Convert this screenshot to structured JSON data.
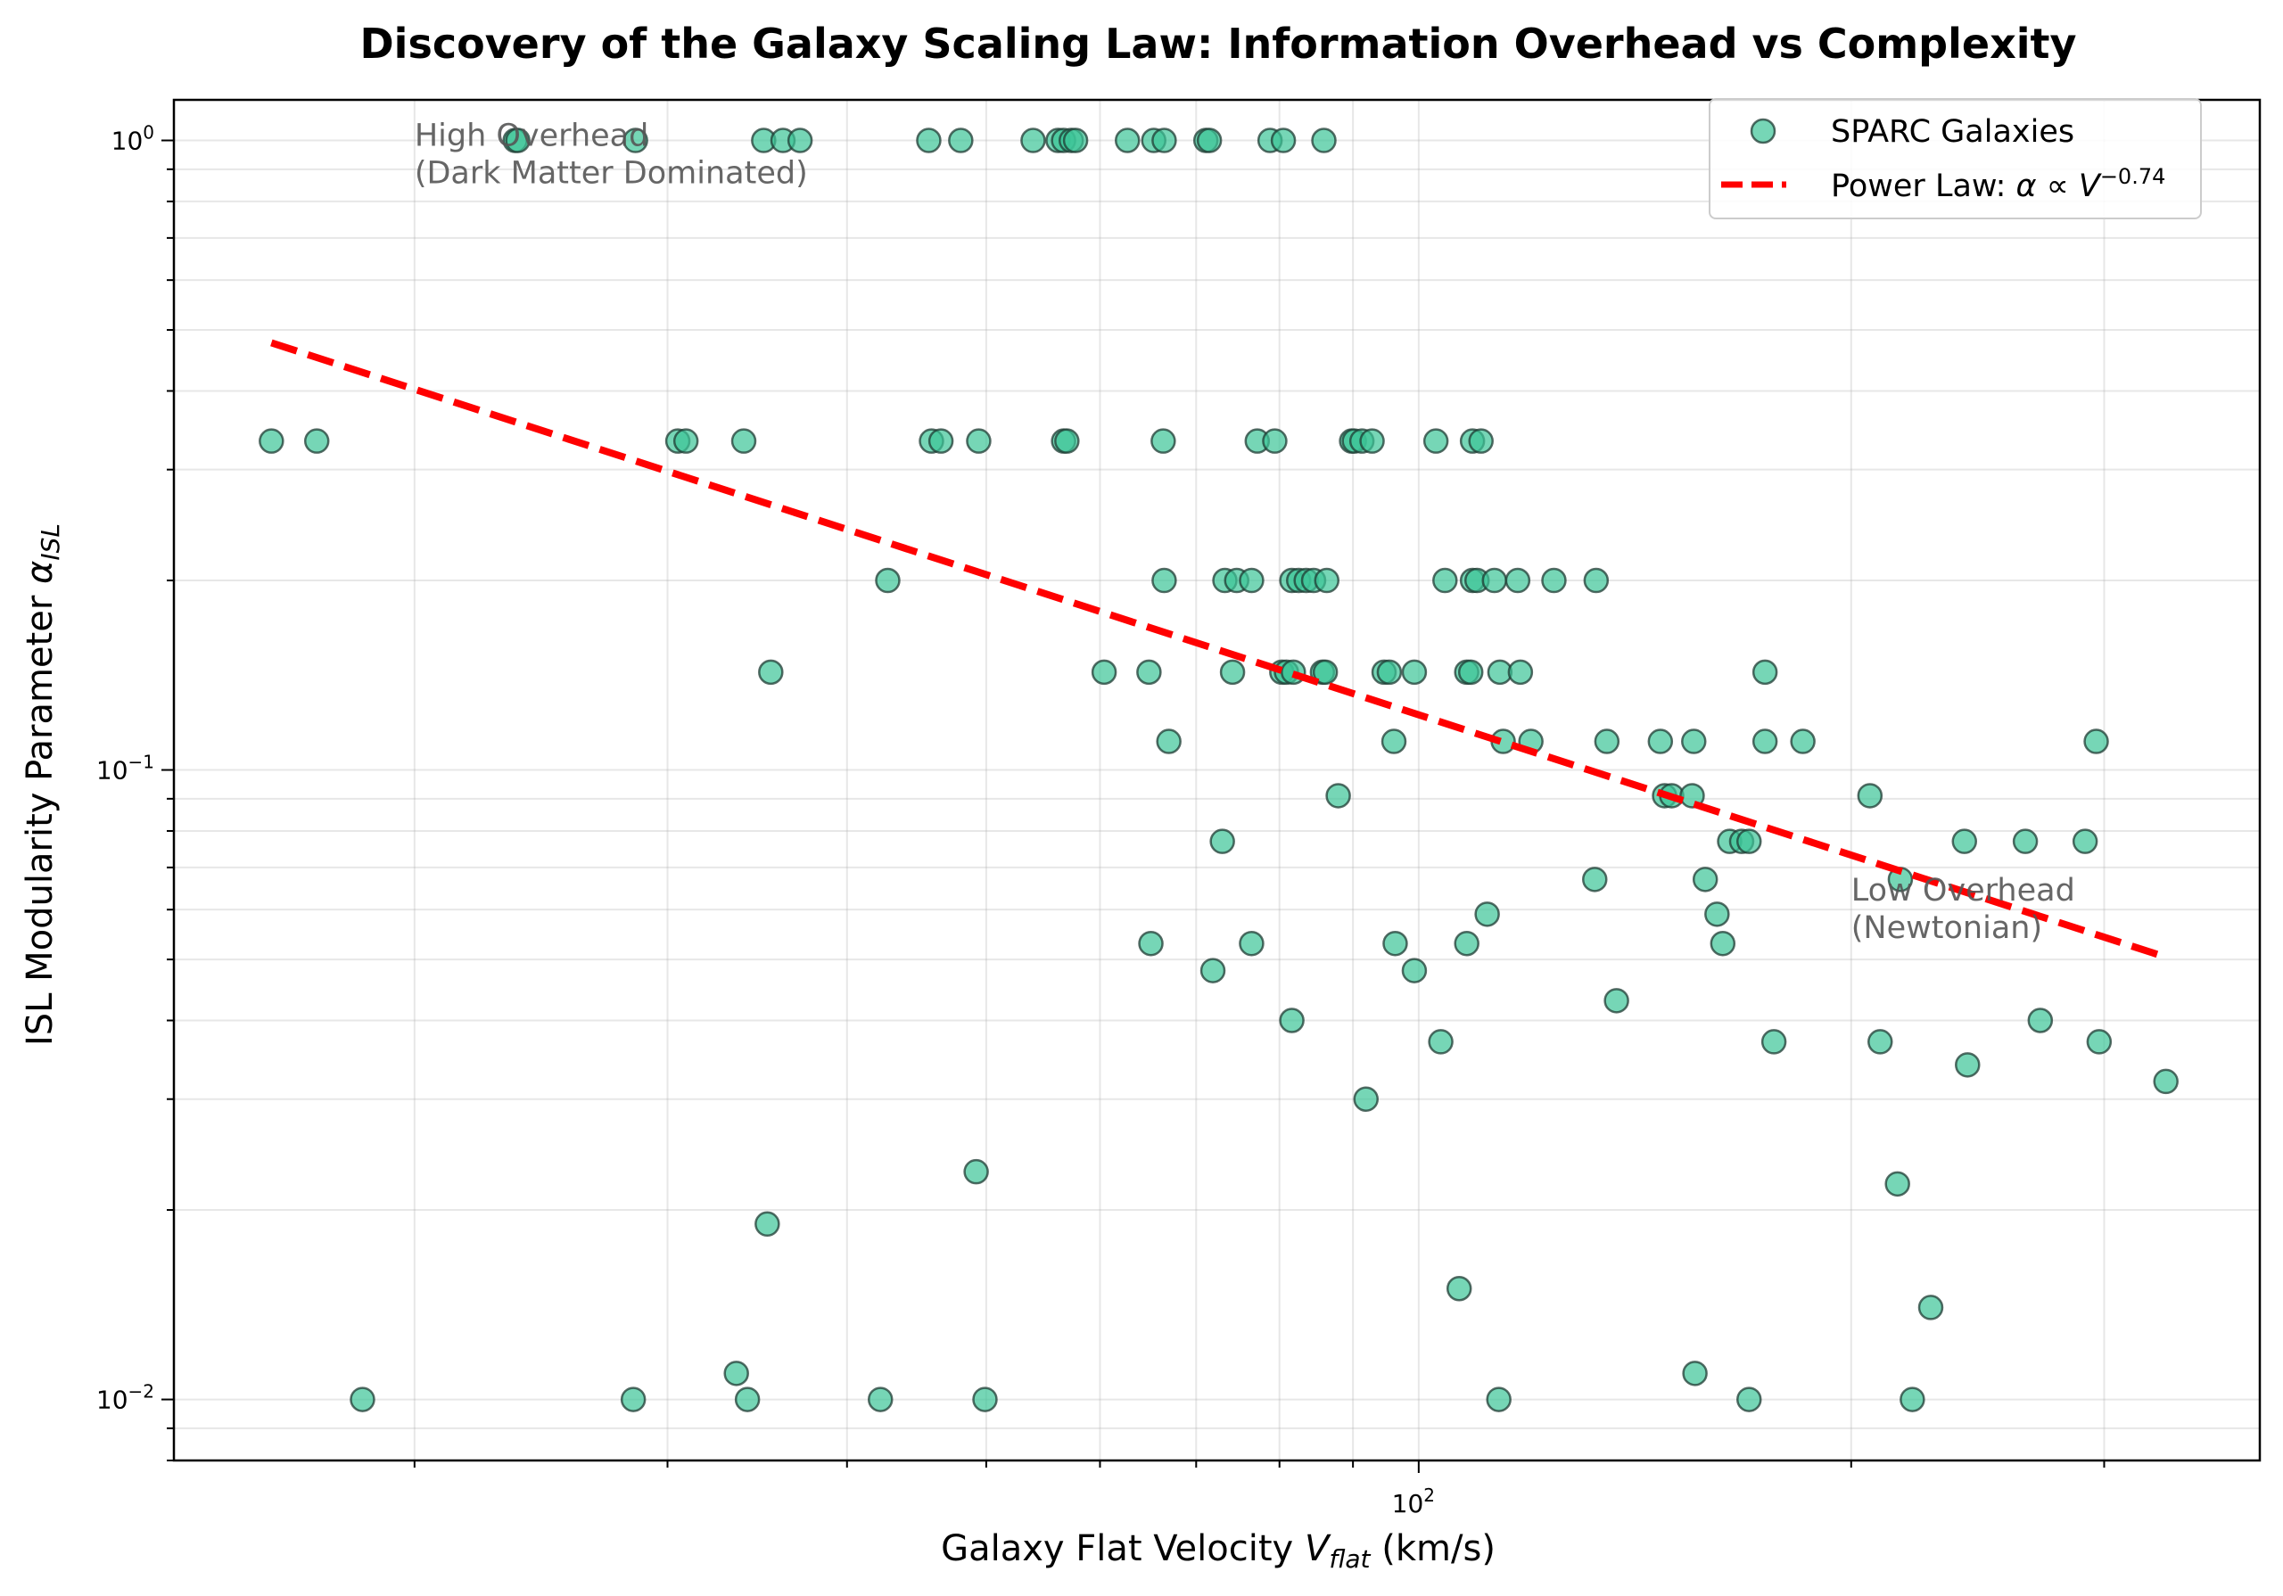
{
  "chart_data": {
    "type": "scatter",
    "title": "Discovery of the Galaxy Scaling Law: Information Overhead vs Complexity",
    "xlabel": "Galaxy Flat Velocity V_flat (km/s)",
    "xlabel_parts": {
      "pre": "Galaxy Flat Velocity ",
      "var": "V",
      "sub": "flat",
      "post": " (km/s)"
    },
    "ylabel": "ISL Modularity Parameter α_ISL",
    "ylabel_parts": {
      "pre": "ISL Modularity Parameter ",
      "var": "α",
      "sub": "ISL"
    },
    "xscale": "log",
    "yscale": "log",
    "xlim": [
      13.6,
      385
    ],
    "ylim": [
      0.008,
      1.16
    ],
    "grid": true,
    "x_ticks": [
      {
        "value": 100,
        "base": "10",
        "exp": "2"
      }
    ],
    "y_ticks": [
      {
        "value": 1,
        "base": "10",
        "exp": "0"
      },
      {
        "value": 0.1,
        "base": "10",
        "exp": "−1"
      },
      {
        "value": 0.01,
        "base": "10",
        "exp": "−2"
      }
    ],
    "legend": {
      "placement": "top-right",
      "entries": [
        {
          "label": "SPARC Galaxies",
          "kind": "marker"
        },
        {
          "label_pre": "Power Law: ",
          "label_math": "α ∝ V",
          "label_exp": "−0.74",
          "kind": "dashed-line"
        }
      ]
    },
    "annotations": [
      {
        "lines": [
          "High Overhead",
          "(Dark Matter Dominated)"
        ],
        "x": 20,
        "y": 0.98
      },
      {
        "lines": [
          "Low Overhead",
          "(Newtonian)"
        ],
        "x": 200,
        "y": 0.062
      }
    ],
    "colors": {
      "points": "#3cc497",
      "point_edge": "#1f3b33",
      "fit": "#ff0000"
    },
    "series": [
      {
        "name": "SPARC Galaxies",
        "type": "scatter",
        "points": [
          [
            23.5,
            1.0
          ],
          [
            23.6,
            1.0
          ],
          [
            28.5,
            1.0
          ],
          [
            35.0,
            1.0
          ],
          [
            36.1,
            1.0
          ],
          [
            37.1,
            1.0
          ],
          [
            45.6,
            1.0
          ],
          [
            48.0,
            1.0
          ],
          [
            53.9,
            1.0
          ],
          [
            56.1,
            1.0
          ],
          [
            56.6,
            1.0
          ],
          [
            57.3,
            1.0
          ],
          [
            57.7,
            1.0
          ],
          [
            62.7,
            1.0
          ],
          [
            65.4,
            1.0
          ],
          [
            66.5,
            1.0
          ],
          [
            71.1,
            1.0
          ],
          [
            71.5,
            1.0
          ],
          [
            78.8,
            1.0
          ],
          [
            80.5,
            1.0
          ],
          [
            85.9,
            1.0
          ],
          [
            15.9,
            0.333
          ],
          [
            17.1,
            0.333
          ],
          [
            30.5,
            0.333
          ],
          [
            30.9,
            0.333
          ],
          [
            33.9,
            0.333
          ],
          [
            45.8,
            0.333
          ],
          [
            46.5,
            0.333
          ],
          [
            49.4,
            0.333
          ],
          [
            56.6,
            0.333
          ],
          [
            56.9,
            0.333
          ],
          [
            66.4,
            0.333
          ],
          [
            77.2,
            0.333
          ],
          [
            79.4,
            0.333
          ],
          [
            89.8,
            0.333
          ],
          [
            90.2,
            0.333
          ],
          [
            91.3,
            0.333
          ],
          [
            92.8,
            0.333
          ],
          [
            102.8,
            0.333
          ],
          [
            109.0,
            0.333
          ],
          [
            110.5,
            0.333
          ],
          [
            42.7,
            0.2
          ],
          [
            66.5,
            0.2
          ],
          [
            73.3,
            0.2
          ],
          [
            74.7,
            0.2
          ],
          [
            76.5,
            0.2
          ],
          [
            81.6,
            0.2
          ],
          [
            82.5,
            0.2
          ],
          [
            83.5,
            0.2
          ],
          [
            84.5,
            0.2
          ],
          [
            86.3,
            0.2
          ],
          [
            104.3,
            0.2
          ],
          [
            109.0,
            0.2
          ],
          [
            109.8,
            0.2
          ],
          [
            112.9,
            0.2
          ],
          [
            117.2,
            0.2
          ],
          [
            124.2,
            0.2
          ],
          [
            132.9,
            0.2
          ],
          [
            35.4,
            0.143
          ],
          [
            60.4,
            0.143
          ],
          [
            64.9,
            0.143
          ],
          [
            74.2,
            0.143
          ],
          [
            80.3,
            0.143
          ],
          [
            80.9,
            0.143
          ],
          [
            81.8,
            0.143
          ],
          [
            85.7,
            0.143
          ],
          [
            86.1,
            0.143
          ],
          [
            94.6,
            0.143
          ],
          [
            95.4,
            0.143
          ],
          [
            99.3,
            0.143
          ],
          [
            108.0,
            0.143
          ],
          [
            108.7,
            0.143
          ],
          [
            113.9,
            0.143
          ],
          [
            117.7,
            0.143
          ],
          [
            174.2,
            0.143
          ],
          [
            67.0,
            0.111
          ],
          [
            96.1,
            0.111
          ],
          [
            114.5,
            0.111
          ],
          [
            119.7,
            0.111
          ],
          [
            135.2,
            0.111
          ],
          [
            147.3,
            0.111
          ],
          [
            155.4,
            0.111
          ],
          [
            174.2,
            0.111
          ],
          [
            185.1,
            0.111
          ],
          [
            296.2,
            0.111
          ],
          [
            87.9,
            0.091
          ],
          [
            148.3,
            0.091
          ],
          [
            150.0,
            0.091
          ],
          [
            155.0,
            0.091
          ],
          [
            206.1,
            0.091
          ],
          [
            73.0,
            0.077
          ],
          [
            164.6,
            0.077
          ],
          [
            167.8,
            0.077
          ],
          [
            169.8,
            0.077
          ],
          [
            239.8,
            0.077
          ],
          [
            264.4,
            0.077
          ],
          [
            291.0,
            0.077
          ],
          [
            132.6,
            0.067
          ],
          [
            158.3,
            0.067
          ],
          [
            216.4,
            0.067
          ],
          [
            111.6,
            0.059
          ],
          [
            161.3,
            0.059
          ],
          [
            65.1,
            0.053
          ],
          [
            76.5,
            0.053
          ],
          [
            96.3,
            0.053
          ],
          [
            108.0,
            0.053
          ],
          [
            162.8,
            0.053
          ],
          [
            71.9,
            0.048
          ],
          [
            99.3,
            0.048
          ],
          [
            137.3,
            0.043
          ],
          [
            81.6,
            0.04
          ],
          [
            270.8,
            0.04
          ],
          [
            103.6,
            0.037
          ],
          [
            176.7,
            0.037
          ],
          [
            209.5,
            0.037
          ],
          [
            297.6,
            0.037
          ],
          [
            241.0,
            0.034
          ],
          [
            331.2,
            0.032
          ],
          [
            91.9,
            0.03
          ],
          [
            49.2,
            0.023
          ],
          [
            215.4,
            0.022
          ],
          [
            35.2,
            0.019
          ],
          [
            106.7,
            0.015
          ],
          [
            227.2,
            0.014
          ],
          [
            33.5,
            0.011
          ],
          [
            155.7,
            0.011
          ],
          [
            18.4,
            0.01
          ],
          [
            28.4,
            0.01
          ],
          [
            34.1,
            0.01
          ],
          [
            42.2,
            0.01
          ],
          [
            49.9,
            0.01
          ],
          [
            113.7,
            0.01
          ],
          [
            169.8,
            0.01
          ],
          [
            220.6,
            0.01
          ]
        ]
      },
      {
        "name": "Power Law",
        "type": "line",
        "style": "dashed",
        "exponent": -0.74,
        "x_range": [
          15.9,
          331.2
        ],
        "y_at_x_start": 0.477
      }
    ]
  }
}
